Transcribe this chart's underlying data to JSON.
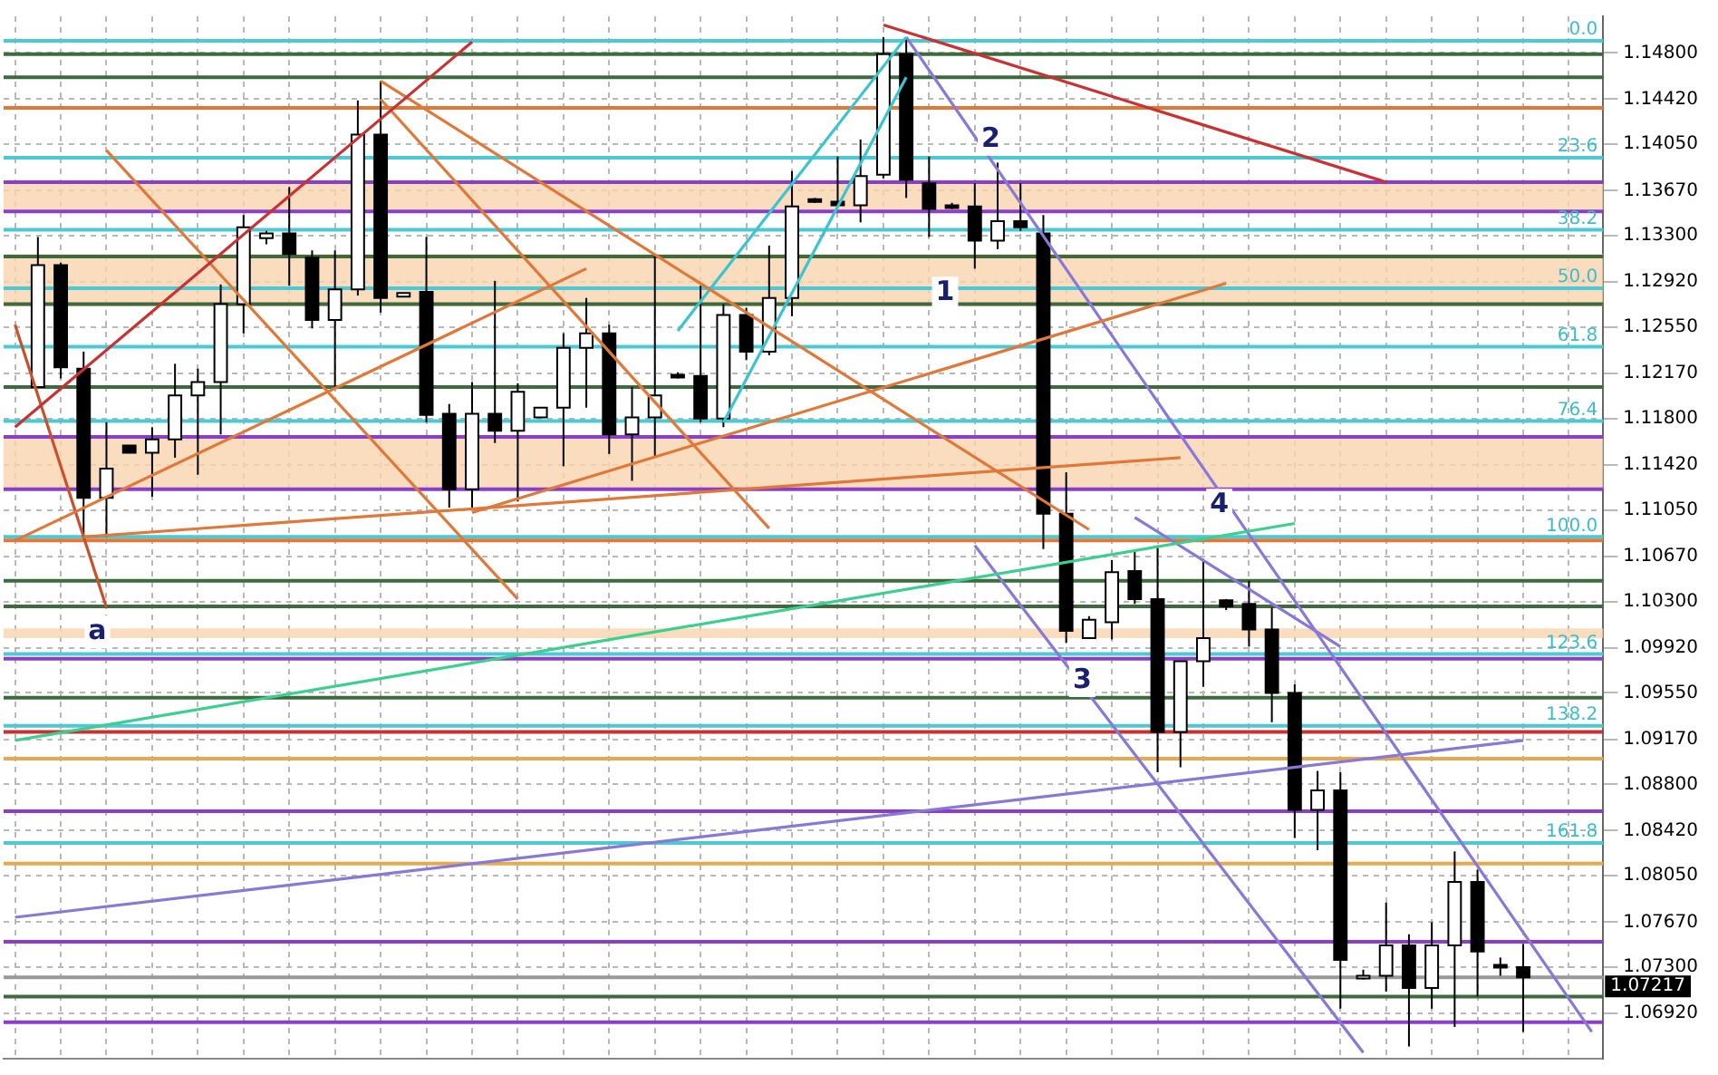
{
  "chart_data": {
    "type": "candlestick",
    "categories": [
      null,
      null,
      null,
      null,
      null,
      null,
      null,
      null,
      null,
      null,
      null,
      null,
      null,
      null,
      null,
      null,
      null,
      null,
      null,
      null,
      null,
      null,
      null,
      null,
      null,
      null,
      null,
      null,
      null,
      null,
      null,
      null,
      null,
      null,
      null,
      null,
      null,
      null,
      null,
      null,
      null,
      null,
      null,
      null,
      null,
      null,
      null,
      null,
      null,
      null,
      null,
      null,
      null,
      null,
      null,
      null,
      null,
      null,
      null,
      null,
      null,
      null,
      null,
      null,
      null,
      null,
      null,
      null,
      null,
      null
    ],
    "ohlc": [
      null,
      [
        1.1206,
        1.1329,
        1.1206,
        1.1306
      ],
      [
        1.1306,
        1.1308,
        1.1213,
        1.1222
      ],
      [
        1.1221,
        1.1235,
        1.1083,
        1.1115
      ],
      [
        1.1115,
        1.1177,
        1.1083,
        1.1139
      ],
      [
        1.1158,
        1.1158,
        1.1152,
        1.1152
      ],
      [
        1.1152,
        1.1173,
        1.1116,
        1.1163
      ],
      [
        1.1163,
        1.1225,
        1.1148,
        1.1199
      ],
      [
        1.1199,
        1.1221,
        1.1134,
        1.121
      ],
      [
        1.121,
        1.129,
        1.1167,
        1.1274
      ],
      [
        1.1274,
        1.1347,
        1.125,
        1.1337
      ],
      [
        1.1328,
        1.1334,
        1.1323,
        1.1332
      ],
      [
        1.1332,
        1.137,
        1.1289,
        1.1315
      ],
      [
        1.1312,
        1.1318,
        1.1254,
        1.1261
      ],
      [
        1.1261,
        1.1318,
        1.1206,
        1.1286
      ],
      [
        1.1286,
        1.1441,
        1.1281,
        1.1413
      ],
      [
        1.1413,
        1.1457,
        1.1267,
        1.1279
      ],
      [
        1.128,
        1.1283,
        1.128,
        1.1283
      ],
      [
        1.1284,
        1.1329,
        1.1177,
        1.1183
      ],
      [
        1.1184,
        1.1192,
        1.1107,
        1.1122
      ],
      [
        1.1122,
        1.121,
        1.1105,
        1.1184
      ],
      [
        1.1184,
        1.1293,
        1.116,
        1.117
      ],
      [
        1.117,
        1.1209,
        1.1112,
        1.1202
      ],
      [
        1.1181,
        1.1189,
        1.1181,
        1.1189
      ],
      [
        1.1189,
        1.125,
        1.1141,
        1.1238
      ],
      [
        1.1238,
        1.1279,
        1.1189,
        1.125
      ],
      [
        1.125,
        1.1257,
        1.1151,
        1.1167
      ],
      [
        1.1167,
        1.1206,
        1.1129,
        1.1181
      ],
      [
        1.1181,
        1.1315,
        1.1148,
        1.1199
      ],
      [
        1.1216,
        1.1218,
        1.1213,
        1.1215
      ],
      [
        1.1215,
        1.1289,
        1.1177,
        1.118
      ],
      [
        1.118,
        1.1274,
        1.1173,
        1.1265
      ],
      [
        1.1265,
        1.1271,
        1.1228,
        1.1235
      ],
      [
        1.1235,
        1.1322,
        1.1232,
        1.1279
      ],
      [
        1.1279,
        1.1383,
        1.1264,
        1.1354
      ],
      [
        1.136,
        1.1361,
        1.1357,
        1.1358
      ],
      [
        1.1358,
        1.1395,
        1.1354,
        1.1355
      ],
      [
        1.1355,
        1.1409,
        1.1341,
        1.1379
      ],
      [
        1.138,
        1.1493,
        1.1377,
        1.1479
      ],
      [
        1.1479,
        1.1492,
        1.1361,
        1.1376
      ],
      [
        1.1373,
        1.1395,
        1.1329,
        1.1352
      ],
      [
        1.1355,
        1.1357,
        1.1352,
        1.1354
      ],
      [
        1.1354,
        1.1373,
        1.1303,
        1.1326
      ],
      [
        1.1326,
        1.139,
        1.1319,
        1.1342
      ],
      [
        1.1342,
        1.1373,
        1.1334,
        1.1337
      ],
      [
        1.1332,
        1.1347,
        1.1073,
        1.1102
      ],
      [
        1.1102,
        1.1136,
        1.0996,
        1.1006
      ],
      [
        1.1,
        1.1018,
        1.1,
        1.1015
      ],
      [
        1.1013,
        1.1064,
        1.0999,
        1.1054
      ],
      [
        1.1055,
        1.1071,
        1.1028,
        1.1032
      ],
      [
        1.1032,
        1.1076,
        1.089,
        1.0923
      ],
      [
        1.0923,
        1.0981,
        1.0894,
        1.0981
      ],
      [
        1.0981,
        1.1065,
        1.096,
        1.1
      ],
      [
        1.1031,
        1.1032,
        1.1023,
        1.1026
      ],
      [
        1.1028,
        1.1047,
        1.0993,
        1.1007
      ],
      [
        1.1007,
        1.1025,
        1.0931,
        1.0955
      ],
      [
        1.0955,
        1.0962,
        1.0836,
        1.0859
      ],
      [
        1.0859,
        1.0891,
        1.0826,
        1.0875
      ],
      [
        1.0875,
        1.089,
        1.0696,
        1.0736
      ],
      [
        1.0722,
        1.0728,
        1.072,
        1.0723
      ],
      [
        1.0723,
        1.0783,
        1.071,
        1.0748
      ],
      [
        1.0748,
        1.0757,
        1.0665,
        1.0713
      ],
      [
        1.0713,
        1.0767,
        1.0696,
        1.0748
      ],
      [
        1.0748,
        1.0825,
        1.0681,
        1.08
      ],
      [
        1.08,
        1.081,
        1.0706,
        1.0743
      ],
      [
        1.0732,
        1.0738,
        1.0723,
        1.073
      ],
      [
        1.073,
        1.0749,
        1.0677,
        1.07217
      ],
      null,
      null,
      null
    ],
    "series": [
      {
        "type": "line",
        "color": "#c83232",
        "values": [
          1.1173,
          null,
          null,
          null,
          null,
          null,
          null,
          null,
          null,
          null,
          null,
          null,
          null,
          null,
          null,
          null,
          null,
          null,
          null,
          null,
          1.1489,
          null,
          null,
          null,
          null,
          null,
          null,
          null,
          null,
          null,
          null,
          null,
          null,
          null,
          null,
          null,
          null,
          null,
          null,
          null,
          null,
          null,
          null,
          null,
          null,
          null,
          null,
          null,
          null,
          null,
          null,
          null,
          null,
          null,
          null,
          null,
          null,
          null,
          null,
          null,
          null,
          null,
          null,
          null,
          null,
          null,
          null,
          null,
          null,
          null
        ]
      },
      {
        "type": "line",
        "color": "#c83232",
        "values": [
          null,
          null,
          null,
          null,
          null,
          null,
          null,
          null,
          null,
          null,
          null,
          null,
          null,
          null,
          null,
          null,
          null,
          null,
          null,
          null,
          null,
          null,
          null,
          null,
          null,
          null,
          null,
          null,
          null,
          null,
          null,
          null,
          null,
          null,
          null,
          null,
          null,
          null,
          1.1503,
          null,
          null,
          null,
          null,
          null,
          null,
          null,
          null,
          null,
          null,
          null,
          null,
          null,
          null,
          null,
          null,
          null,
          null,
          null,
          null,
          null,
          1.1374,
          null,
          null,
          null,
          null,
          null,
          null,
          null,
          null,
          null
        ]
      },
      {
        "type": "line",
        "color": "#e0783a",
        "values": [
          null,
          null,
          null,
          null,
          null,
          null,
          null,
          null,
          null,
          null,
          null,
          null,
          null,
          null,
          null,
          null,
          1.1442,
          null,
          null,
          null,
          null,
          null,
          null,
          null,
          null,
          null,
          null,
          null,
          null,
          null,
          null,
          null,
          null,
          1.109,
          null,
          null,
          null,
          null,
          null,
          null,
          null,
          null,
          null,
          null,
          null,
          null,
          null,
          null,
          null,
          null,
          null,
          null,
          null,
          null,
          null,
          null,
          null,
          null,
          null,
          null,
          null,
          null,
          null,
          null,
          null,
          null,
          null,
          null,
          null,
          null
        ]
      },
      {
        "type": "line",
        "color": "#e0783a",
        "values": [
          null,
          null,
          null,
          null,
          1.14,
          null,
          null,
          null,
          null,
          null,
          null,
          null,
          null,
          null,
          null,
          null,
          null,
          null,
          null,
          null,
          null,
          null,
          1.1032,
          null,
          null,
          null,
          null,
          null,
          null,
          null,
          null,
          null,
          null,
          null,
          null,
          null,
          null,
          null,
          null,
          null,
          null,
          null,
          null,
          null,
          null,
          null,
          null,
          null,
          null,
          null,
          null,
          null,
          null,
          null,
          null,
          null,
          null,
          null,
          null,
          null,
          null,
          null,
          null,
          null,
          null,
          null,
          null,
          null,
          null,
          null
        ]
      },
      {
        "type": "line",
        "color": "#e0783a",
        "values": [
          null,
          null,
          null,
          null,
          null,
          null,
          null,
          null,
          null,
          null,
          null,
          null,
          null,
          null,
          null,
          null,
          1.1457,
          null,
          null,
          null,
          null,
          null,
          null,
          null,
          null,
          null,
          null,
          null,
          null,
          null,
          null,
          null,
          null,
          null,
          null,
          null,
          null,
          null,
          null,
          null,
          null,
          null,
          null,
          null,
          null,
          null,
          null,
          1.1089,
          null,
          null,
          null,
          null,
          null,
          null,
          null,
          null,
          null,
          null,
          null,
          null,
          null,
          null,
          null,
          null,
          null,
          null,
          null,
          null,
          null,
          null
        ]
      },
      {
        "type": "line",
        "color": "#e0783a",
        "values": [
          1.108,
          null,
          null,
          null,
          null,
          null,
          null,
          null,
          null,
          null,
          null,
          null,
          null,
          null,
          null,
          null,
          null,
          null,
          null,
          null,
          null,
          null,
          null,
          null,
          null,
          1.1303,
          null,
          null,
          null,
          null,
          null,
          null,
          null,
          null,
          null,
          null,
          null,
          null,
          null,
          null,
          null,
          null,
          null,
          null,
          null,
          null,
          null,
          null,
          null,
          null,
          null,
          null,
          null,
          null,
          null,
          null,
          null,
          null,
          null,
          null,
          null,
          null,
          null,
          null,
          null,
          null,
          null,
          null,
          null,
          null
        ]
      },
      {
        "type": "line",
        "color": "#e0783a",
        "values": [
          null,
          null,
          null,
          null,
          null,
          null,
          null,
          null,
          null,
          null,
          null,
          null,
          null,
          null,
          null,
          null,
          null,
          null,
          null,
          null,
          1.1103,
          null,
          null,
          null,
          null,
          null,
          null,
          null,
          null,
          null,
          null,
          null,
          null,
          null,
          null,
          null,
          null,
          null,
          null,
          null,
          null,
          null,
          null,
          null,
          null,
          null,
          null,
          null,
          null,
          null,
          null,
          null,
          null,
          1.1291,
          null,
          null,
          null,
          null,
          null,
          null,
          null,
          null,
          null,
          null,
          null,
          null,
          null,
          null,
          null,
          null
        ]
      },
      {
        "type": "line",
        "color": "#e0783a",
        "values": [
          null,
          null,
          null,
          1.1083,
          null,
          null,
          null,
          null,
          null,
          null,
          null,
          null,
          null,
          null,
          null,
          null,
          null,
          null,
          null,
          null,
          null,
          null,
          null,
          null,
          null,
          null,
          null,
          null,
          null,
          null,
          null,
          null,
          null,
          null,
          null,
          null,
          null,
          null,
          null,
          null,
          null,
          null,
          null,
          null,
          null,
          null,
          null,
          null,
          null,
          null,
          null,
          1.1148,
          null,
          null,
          null,
          null,
          null,
          null,
          null,
          null,
          null,
          null,
          null,
          null,
          null,
          null,
          null,
          null,
          null,
          null
        ]
      },
      {
        "type": "line",
        "color": "#3cc3d0",
        "values": [
          null,
          null,
          null,
          null,
          null,
          null,
          null,
          null,
          null,
          null,
          null,
          null,
          null,
          null,
          null,
          null,
          null,
          null,
          null,
          null,
          null,
          null,
          null,
          null,
          null,
          null,
          null,
          null,
          null,
          1.1252,
          null,
          null,
          null,
          null,
          null,
          null,
          null,
          null,
          null,
          1.1493,
          null,
          null,
          null,
          null,
          null,
          null,
          null,
          null,
          null,
          null,
          null,
          null,
          null,
          null,
          null,
          null,
          null,
          null,
          null,
          null,
          null,
          null,
          null,
          null,
          null,
          null,
          null,
          null,
          null,
          null
        ]
      },
      {
        "type": "line",
        "color": "#3cc3d0",
        "values": [
          null,
          null,
          null,
          null,
          null,
          null,
          null,
          null,
          null,
          null,
          null,
          null,
          null,
          null,
          null,
          null,
          null,
          null,
          null,
          null,
          null,
          null,
          null,
          null,
          null,
          null,
          null,
          null,
          null,
          null,
          null,
          1.1177,
          null,
          null,
          null,
          null,
          null,
          null,
          null,
          1.146,
          null,
          null,
          null,
          null,
          null,
          null,
          null,
          null,
          null,
          null,
          null,
          null,
          null,
          null,
          null,
          null,
          null,
          null,
          null,
          null,
          null,
          null,
          null,
          null,
          null,
          null,
          null,
          null,
          null,
          null
        ]
      },
      {
        "type": "line",
        "color": "#3ccf90",
        "values": [
          1.0916,
          null,
          null,
          null,
          null,
          null,
          null,
          null,
          null,
          null,
          null,
          null,
          null,
          null,
          null,
          null,
          null,
          null,
          null,
          null,
          null,
          null,
          null,
          null,
          null,
          null,
          null,
          null,
          null,
          null,
          null,
          null,
          null,
          null,
          null,
          null,
          null,
          null,
          null,
          null,
          null,
          null,
          null,
          null,
          null,
          null,
          null,
          null,
          null,
          null,
          null,
          null,
          null,
          null,
          null,
          null,
          1.1094,
          null,
          null,
          null,
          null,
          null,
          null,
          null,
          null,
          null,
          null,
          null,
          null,
          null
        ]
      },
      {
        "type": "line",
        "color": "#8878d8",
        "values": [
          1.0771,
          null,
          null,
          null,
          null,
          null,
          null,
          null,
          null,
          null,
          null,
          null,
          null,
          null,
          null,
          null,
          null,
          null,
          null,
          null,
          null,
          null,
          null,
          null,
          null,
          null,
          null,
          null,
          null,
          null,
          null,
          null,
          null,
          null,
          null,
          null,
          null,
          null,
          null,
          null,
          null,
          null,
          null,
          null,
          null,
          null,
          null,
          null,
          null,
          null,
          null,
          null,
          null,
          null,
          null,
          null,
          null,
          null,
          null,
          null,
          null,
          null,
          null,
          null,
          null,
          null,
          1.0916,
          null,
          null,
          null
        ]
      },
      {
        "type": "line",
        "color": "#8878d8",
        "values": [
          null,
          null,
          null,
          null,
          null,
          null,
          null,
          null,
          null,
          null,
          null,
          null,
          null,
          null,
          null,
          null,
          null,
          null,
          null,
          null,
          null,
          null,
          null,
          null,
          null,
          null,
          null,
          null,
          null,
          null,
          null,
          null,
          null,
          null,
          null,
          null,
          null,
          null,
          null,
          1.1493,
          null,
          null,
          null,
          null,
          null,
          null,
          null,
          null,
          null,
          null,
          null,
          null,
          null,
          null,
          null,
          null,
          null,
          null,
          null,
          null,
          null,
          null,
          null,
          null,
          null,
          null,
          null,
          null,
          null,
          1.0677
        ]
      },
      {
        "type": "line",
        "color": "#8878d8",
        "values": [
          null,
          null,
          null,
          null,
          null,
          null,
          null,
          null,
          null,
          null,
          null,
          null,
          null,
          null,
          null,
          null,
          null,
          null,
          null,
          null,
          null,
          null,
          null,
          null,
          null,
          null,
          null,
          null,
          null,
          null,
          null,
          null,
          null,
          null,
          null,
          null,
          null,
          null,
          null,
          null,
          null,
          null,
          1.1076,
          null,
          null,
          null,
          null,
          null,
          null,
          null,
          null,
          null,
          null,
          null,
          null,
          null,
          null,
          null,
          null,
          1.066,
          null,
          null,
          null,
          null,
          null,
          null,
          null,
          null,
          null,
          null
        ]
      },
      {
        "type": "line",
        "color": "#8878d8",
        "values": [
          null,
          null,
          null,
          null,
          null,
          null,
          null,
          null,
          null,
          null,
          null,
          null,
          null,
          null,
          null,
          null,
          null,
          null,
          null,
          null,
          null,
          null,
          null,
          null,
          null,
          null,
          null,
          null,
          null,
          null,
          null,
          null,
          null,
          null,
          null,
          null,
          null,
          null,
          null,
          null,
          null,
          null,
          null,
          null,
          null,
          null,
          null,
          null,
          null,
          1.1099,
          null,
          null,
          null,
          null,
          null,
          null,
          null,
          null,
          1.0993,
          null,
          null,
          null,
          null,
          null,
          null,
          null,
          null,
          null,
          null,
          null
        ]
      },
      {
        "type": "line",
        "color": "#c8502a",
        "values": [
          1.1257,
          null,
          null,
          null,
          1.1025,
          null,
          null,
          null,
          null,
          null,
          null,
          null,
          null,
          null,
          null,
          null,
          null,
          null,
          null,
          null,
          null,
          null,
          null,
          null,
          null,
          null,
          null,
          null,
          null,
          null,
          null,
          null,
          null,
          null,
          null,
          null,
          null,
          null,
          null,
          null,
          null,
          null,
          null,
          null,
          null,
          null,
          null,
          null,
          null,
          null,
          null,
          null,
          null,
          null,
          null,
          null,
          null,
          null,
          null,
          null,
          null,
          null,
          null,
          null,
          null,
          null,
          null,
          null,
          null,
          null
        ]
      }
    ],
    "ylim": [
      1.0655,
      1.151
    ],
    "yticks": [
      {
        "value": 1.148,
        "label": "1.14800"
      },
      {
        "value": 1.1442,
        "label": "1.14420"
      },
      {
        "value": 1.1405,
        "label": "1.14050"
      },
      {
        "value": 1.1367,
        "label": "1.13670"
      },
      {
        "value": 1.133,
        "label": "1.13300"
      },
      {
        "value": 1.1292,
        "label": "1.12920"
      },
      {
        "value": 1.1255,
        "label": "1.12550"
      },
      {
        "value": 1.1217,
        "label": "1.12170"
      },
      {
        "value": 1.118,
        "label": "1.11800"
      },
      {
        "value": 1.1142,
        "label": "1.11420"
      },
      {
        "value": 1.1105,
        "label": "1.11050"
      },
      {
        "value": 1.1067,
        "label": "1.10670"
      },
      {
        "value": 1.103,
        "label": "1.10300"
      },
      {
        "value": 1.0992,
        "label": "1.09920"
      },
      {
        "value": 1.0955,
        "label": "1.09550"
      },
      {
        "value": 1.0917,
        "label": "1.09170"
      },
      {
        "value": 1.088,
        "label": "1.08800"
      },
      {
        "value": 1.0842,
        "label": "1.08420"
      },
      {
        "value": 1.0805,
        "label": "1.08050"
      },
      {
        "value": 1.0767,
        "label": "1.07670"
      },
      {
        "value": 1.073,
        "label": "1.07300"
      },
      {
        "value": 1.0692,
        "label": "1.06920"
      }
    ],
    "ref_lines": [
      {
        "axis": "y",
        "value": 1.149,
        "color": "#4cc9d4"
      },
      {
        "axis": "y",
        "value": 1.1394,
        "color": "#4cc9d4"
      },
      {
        "axis": "y",
        "value": 1.1335,
        "color": "#4cc9d4"
      },
      {
        "axis": "y",
        "value": 1.1287,
        "color": "#4cc9d4"
      },
      {
        "axis": "y",
        "value": 1.1239,
        "color": "#4cc9d4"
      },
      {
        "axis": "y",
        "value": 1.1178,
        "color": "#4cc9d4"
      },
      {
        "axis": "y",
        "value": 1.1083,
        "color": "#4cc9d4"
      },
      {
        "axis": "y",
        "value": 1.0987,
        "color": "#4cc9d4"
      },
      {
        "axis": "y",
        "value": 1.0928,
        "color": "#4cc9d4"
      },
      {
        "axis": "y",
        "value": 1.0832,
        "color": "#4cc9d4"
      },
      {
        "axis": "y",
        "value": 1.1479,
        "color": "#3d6b3d"
      },
      {
        "axis": "y",
        "value": 1.146,
        "color": "#3d6b3d"
      },
      {
        "axis": "y",
        "value": 1.1313,
        "color": "#3d6b3d"
      },
      {
        "axis": "y",
        "value": 1.1274,
        "color": "#3d6b3d"
      },
      {
        "axis": "y",
        "value": 1.1206,
        "color": "#3d6b3d"
      },
      {
        "axis": "y",
        "value": 1.1047,
        "color": "#3d6b3d"
      },
      {
        "axis": "y",
        "value": 1.1026,
        "color": "#3d6b3d"
      },
      {
        "axis": "y",
        "value": 1.0951,
        "color": "#3d6b3d"
      },
      {
        "axis": "y",
        "value": 1.0706,
        "color": "#3d6b3d"
      },
      {
        "axis": "y",
        "value": 1.1435,
        "color": "#e0783a"
      },
      {
        "axis": "y",
        "value": 1.108,
        "color": "#e0783a"
      },
      {
        "axis": "y",
        "value": 1.1374,
        "color": "#8b3fc8"
      },
      {
        "axis": "y",
        "value": 1.135,
        "color": "#8b3fc8"
      },
      {
        "axis": "y",
        "value": 1.1165,
        "color": "#8b3fc8"
      },
      {
        "axis": "y",
        "value": 1.1122,
        "color": "#8b3fc8"
      },
      {
        "axis": "y",
        "value": 1.0983,
        "color": "#8b3fc8"
      },
      {
        "axis": "y",
        "value": 1.0858,
        "color": "#8b3fc8"
      },
      {
        "axis": "y",
        "value": 1.0751,
        "color": "#8b3fc8"
      },
      {
        "axis": "y",
        "value": 1.0685,
        "color": "#8b3fc8"
      },
      {
        "axis": "y",
        "value": 1.0923,
        "color": "#c83232"
      },
      {
        "axis": "y",
        "value": 1.0901,
        "color": "#e8a850"
      },
      {
        "axis": "y",
        "value": 1.0815,
        "color": "#e8a850"
      },
      {
        "axis": "y",
        "value": 1.07217,
        "label": "1.07217",
        "color": "#999999"
      }
    ],
    "bands": [
      {
        "axis": "y",
        "from": 1.1351,
        "to": 1.1373,
        "color": "#f9d5ae"
      },
      {
        "axis": "y",
        "from": 1.1272,
        "to": 1.1315,
        "color": "#f9d5ae"
      },
      {
        "axis": "y",
        "from": 1.1122,
        "to": 1.1165,
        "color": "#f9d5ae"
      },
      {
        "axis": "y",
        "from": 1.1,
        "to": 1.1008,
        "color": "#f9d5ae"
      }
    ],
    "annotations": [
      {
        "text": "1",
        "y": 1.1283
      },
      {
        "text": "2",
        "y": 1.1409
      },
      {
        "text": "3",
        "y": 1.0965
      },
      {
        "text": "4",
        "y": 1.1109
      },
      {
        "text": "a",
        "y": 1.1005
      },
      {
        "text": "0.0",
        "y": 1.149
      },
      {
        "text": "23.6",
        "y": 1.1394
      },
      {
        "text": "38.2",
        "y": 1.1335
      },
      {
        "text": "50.0",
        "y": 1.1287
      },
      {
        "text": "61.8",
        "y": 1.1239
      },
      {
        "text": "76.4",
        "y": 1.1178
      },
      {
        "text": "100.0",
        "y": 1.1083
      },
      {
        "text": "123.6",
        "y": 1.0987
      },
      {
        "text": "138.2",
        "y": 1.0928
      },
      {
        "text": "161.8",
        "y": 1.0832
      }
    ],
    "grid": true,
    "legend": false,
    "tick_labels": "y"
  }
}
